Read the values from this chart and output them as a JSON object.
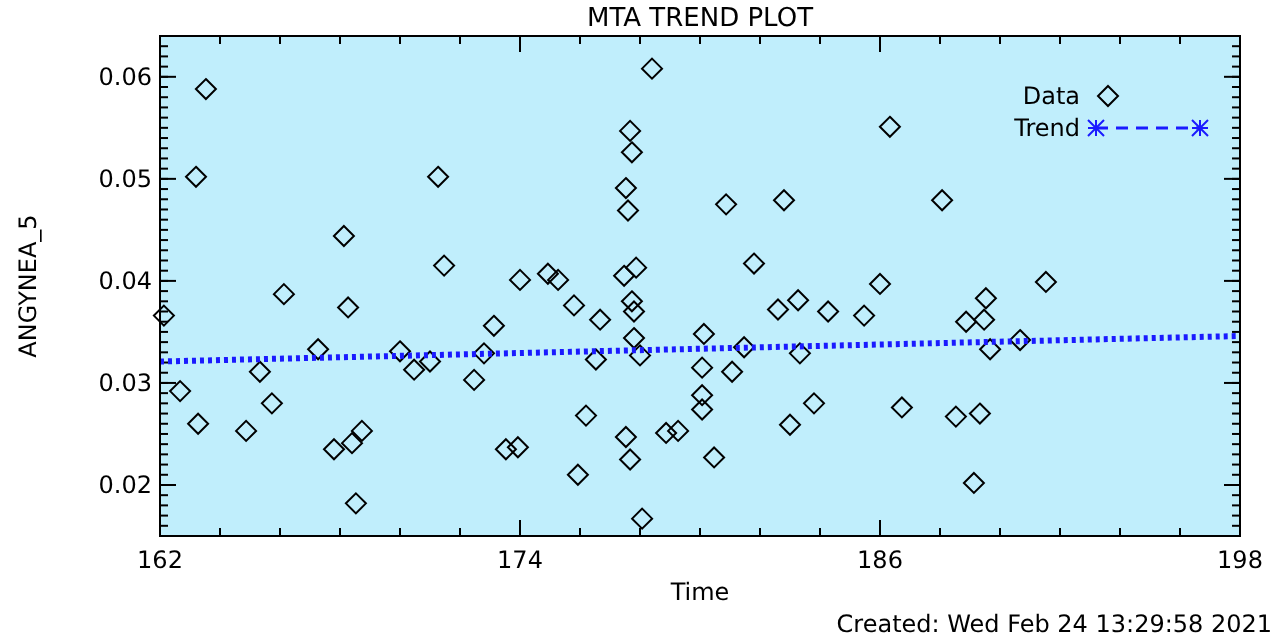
{
  "chart_data": {
    "type": "scatter",
    "title": "MTA TREND PLOT",
    "xlabel": "Time",
    "ylabel": "ANGYNEA_5",
    "xlim": [
      162,
      198
    ],
    "xticks": [
      162,
      174,
      186,
      198
    ],
    "ylim": [
      0.015,
      0.064
    ],
    "yticks": [
      0.02,
      0.03,
      0.04,
      0.05,
      0.06
    ],
    "grid": false,
    "legend": "top right",
    "annotations": [
      "Created: Wed Feb 24 13:29:58 2021"
    ],
    "series": [
      {
        "name": "Data",
        "marker": "diamond",
        "color": "#000000",
        "x": [
          162.13,
          162.67,
          163.2,
          163.27,
          163.53,
          164.87,
          165.33,
          165.73,
          166.13,
          167.27,
          167.8,
          168.13,
          168.27,
          168.4,
          168.53,
          168.73,
          170.0,
          170.47,
          171.0,
          171.27,
          171.47,
          172.47,
          172.8,
          173.13,
          173.53,
          173.93,
          174.0,
          174.93,
          175.27,
          175.8,
          175.93,
          176.2,
          176.53,
          176.67,
          177.47,
          177.53,
          177.53,
          177.6,
          177.67,
          177.67,
          177.73,
          177.73,
          177.8,
          177.8,
          177.87,
          178.0,
          178.07,
          178.4,
          178.87,
          179.27,
          180.07,
          180.07,
          180.07,
          180.13,
          180.47,
          180.87,
          181.07,
          181.47,
          181.8,
          182.6,
          182.8,
          183.0,
          183.27,
          183.33,
          183.8,
          184.27,
          185.47,
          186.0,
          186.33,
          186.73,
          188.07,
          188.53,
          188.87,
          189.13,
          189.33,
          189.47,
          189.53,
          189.67,
          190.67,
          191.53
        ],
        "values": [
          0.0366,
          0.0292,
          0.0502,
          0.026,
          0.0588,
          0.0253,
          0.0311,
          0.028,
          0.0387,
          0.0333,
          0.0235,
          0.0444,
          0.0374,
          0.0241,
          0.0182,
          0.0253,
          0.0331,
          0.0313,
          0.0321,
          0.0502,
          0.0415,
          0.0303,
          0.0329,
          0.0356,
          0.0235,
          0.0237,
          0.0401,
          0.0407,
          0.0401,
          0.0376,
          0.021,
          0.0268,
          0.0323,
          0.0362,
          0.0405,
          0.0491,
          0.0247,
          0.0469,
          0.0547,
          0.0225,
          0.0526,
          0.038,
          0.037,
          0.0344,
          0.0413,
          0.0327,
          0.0167,
          0.0608,
          0.0251,
          0.0253,
          0.0315,
          0.0288,
          0.0274,
          0.0348,
          0.0227,
          0.0475,
          0.0311,
          0.0335,
          0.0417,
          0.0372,
          0.0479,
          0.0259,
          0.0381,
          0.0329,
          0.028,
          0.037,
          0.0366,
          0.0397,
          0.0551,
          0.0276,
          0.0479,
          0.0267,
          0.036,
          0.0202,
          0.027,
          0.0362,
          0.0383,
          0.0333,
          0.0342,
          0.0399
        ]
      },
      {
        "name": "Trend",
        "type": "line",
        "line_style": "dotted",
        "color": "#1a1aff",
        "x": [
          162,
          198
        ],
        "values": [
          0.0321,
          0.0346
        ]
      }
    ]
  }
}
